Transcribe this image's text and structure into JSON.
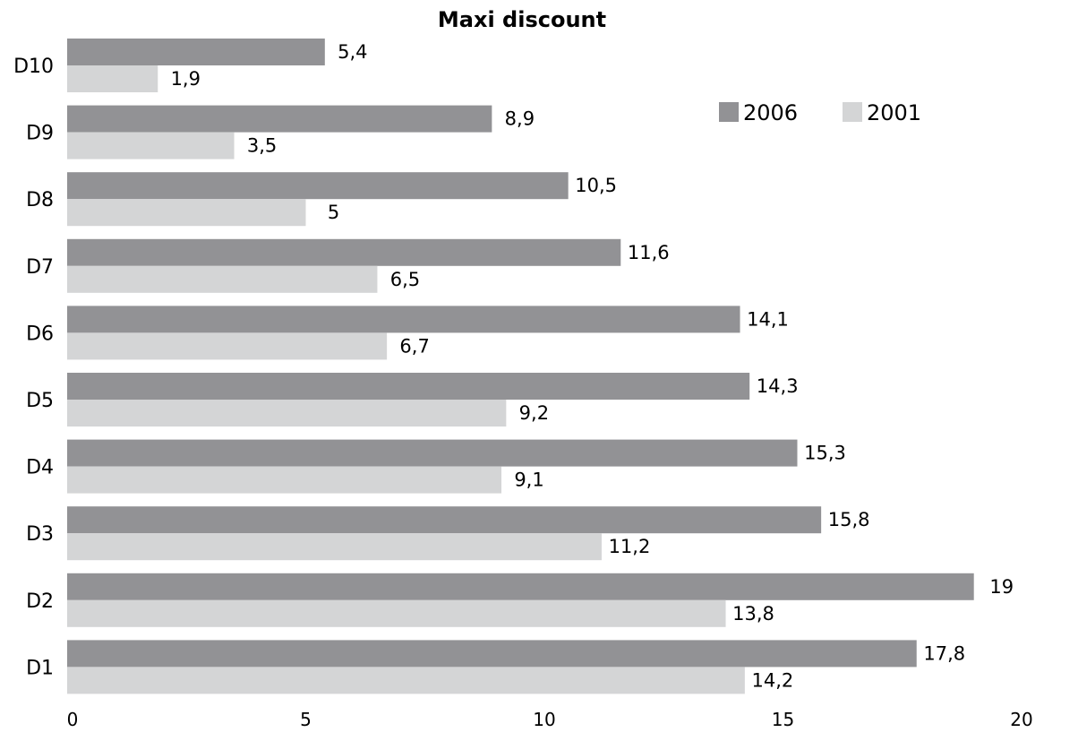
{
  "chart_data": {
    "type": "bar",
    "orientation": "horizontal",
    "title": "Maxi discount",
    "xlabel": "",
    "ylabel": "",
    "xlim": [
      0,
      20
    ],
    "x_ticks": [
      0,
      5,
      10,
      15,
      20
    ],
    "x_tick_labels": [
      "0",
      "5",
      "10",
      "15",
      "20"
    ],
    "grid": false,
    "legend_position": "top-right",
    "categories": [
      "D10",
      "D9",
      "D8",
      "D7",
      "D6",
      "D5",
      "D4",
      "D3",
      "D2",
      "D1"
    ],
    "series": [
      {
        "name": "2006",
        "color": "#929295",
        "values": [
          5.4,
          8.9,
          10.5,
          11.6,
          14.1,
          14.3,
          15.3,
          15.8,
          19,
          17.8
        ],
        "value_labels": [
          "5,4",
          "8,9",
          "10,5",
          "11,6",
          "14,1",
          "14,3",
          "15,3",
          "15,8",
          "19",
          "17,8"
        ]
      },
      {
        "name": "2001",
        "color": "#d4d5d6",
        "values": [
          1.9,
          3.5,
          5,
          6.5,
          6.7,
          9.2,
          9.1,
          11.2,
          13.8,
          14.2
        ],
        "value_labels": [
          "1,9",
          "3,5",
          "5",
          "6,5",
          "6,7",
          "9,2",
          "9,1",
          "11,2",
          "13,8",
          "14,2"
        ]
      }
    ]
  }
}
